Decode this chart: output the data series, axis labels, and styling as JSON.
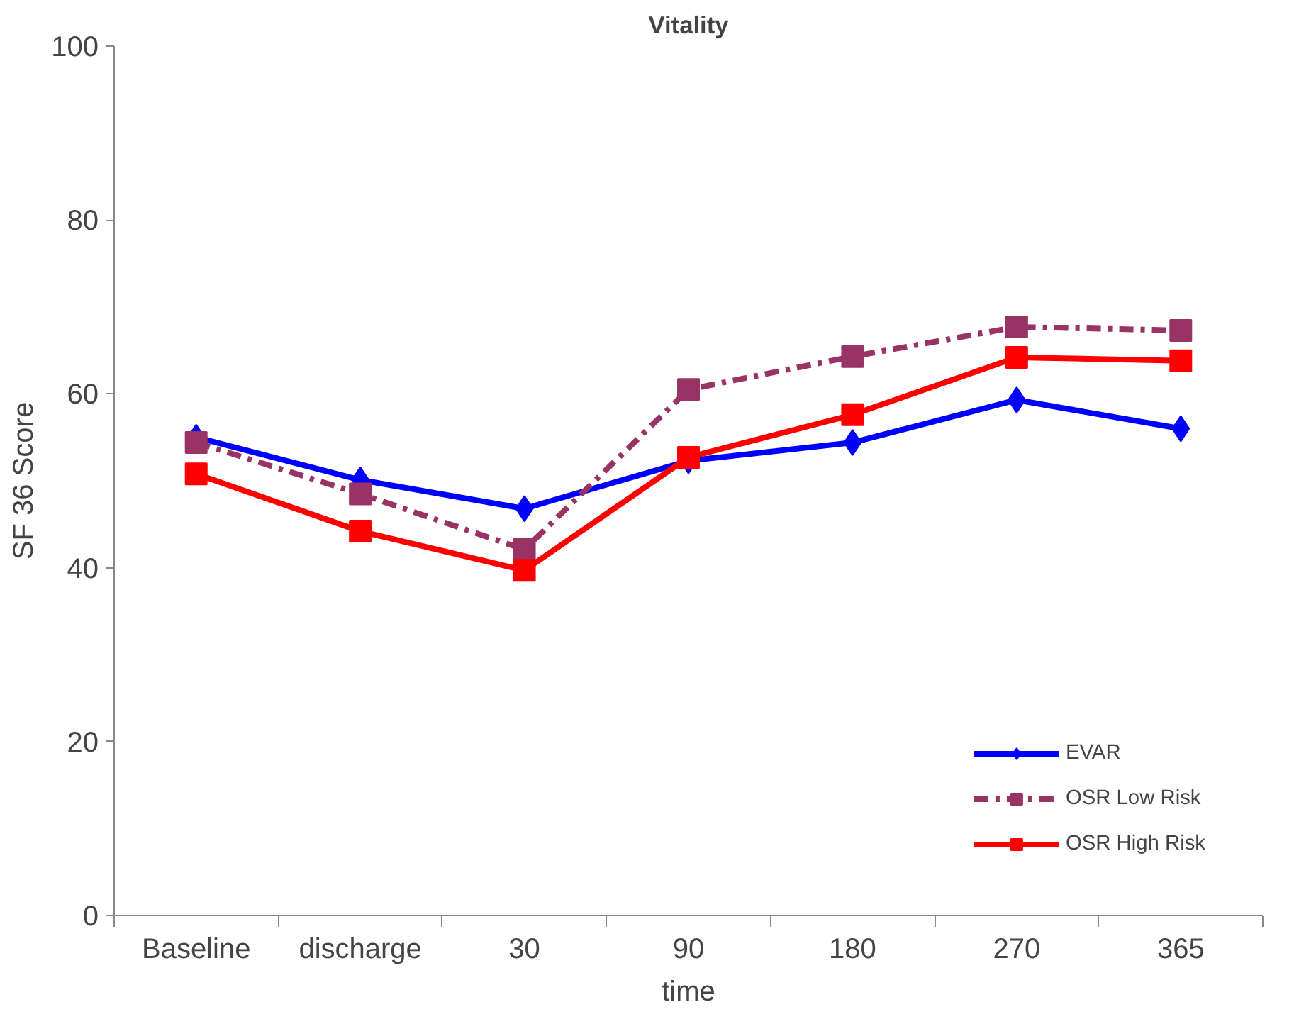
{
  "chart_data": {
    "type": "line",
    "title": "Vitality",
    "xlabel": "time",
    "ylabel": "SF 36 Score",
    "categories": [
      "Baseline",
      "discharge",
      "30",
      "90",
      "180",
      "270",
      "365"
    ],
    "ylim": [
      0,
      100
    ],
    "yticks": [
      0,
      20,
      40,
      60,
      80,
      100
    ],
    "grid": false,
    "legend": "bottom right",
    "series": [
      {
        "name": "EVAR",
        "color": "#0000ff",
        "marker": "diamond",
        "line_style": "solid",
        "values": [
          55.0,
          50.1,
          46.8,
          52.3,
          54.4,
          59.3,
          56.0
        ]
      },
      {
        "name": "OSR Low Risk",
        "color": "#993366",
        "marker": "square",
        "line_style": "dashed",
        "values": [
          54.4,
          48.5,
          42.1,
          60.5,
          64.3,
          67.7,
          67.3
        ]
      },
      {
        "name": "OSR High Risk",
        "color": "#ff0000",
        "marker": "square",
        "line_style": "solid",
        "values": [
          50.8,
          44.2,
          39.7,
          52.7,
          57.6,
          64.2,
          63.8
        ]
      }
    ]
  }
}
